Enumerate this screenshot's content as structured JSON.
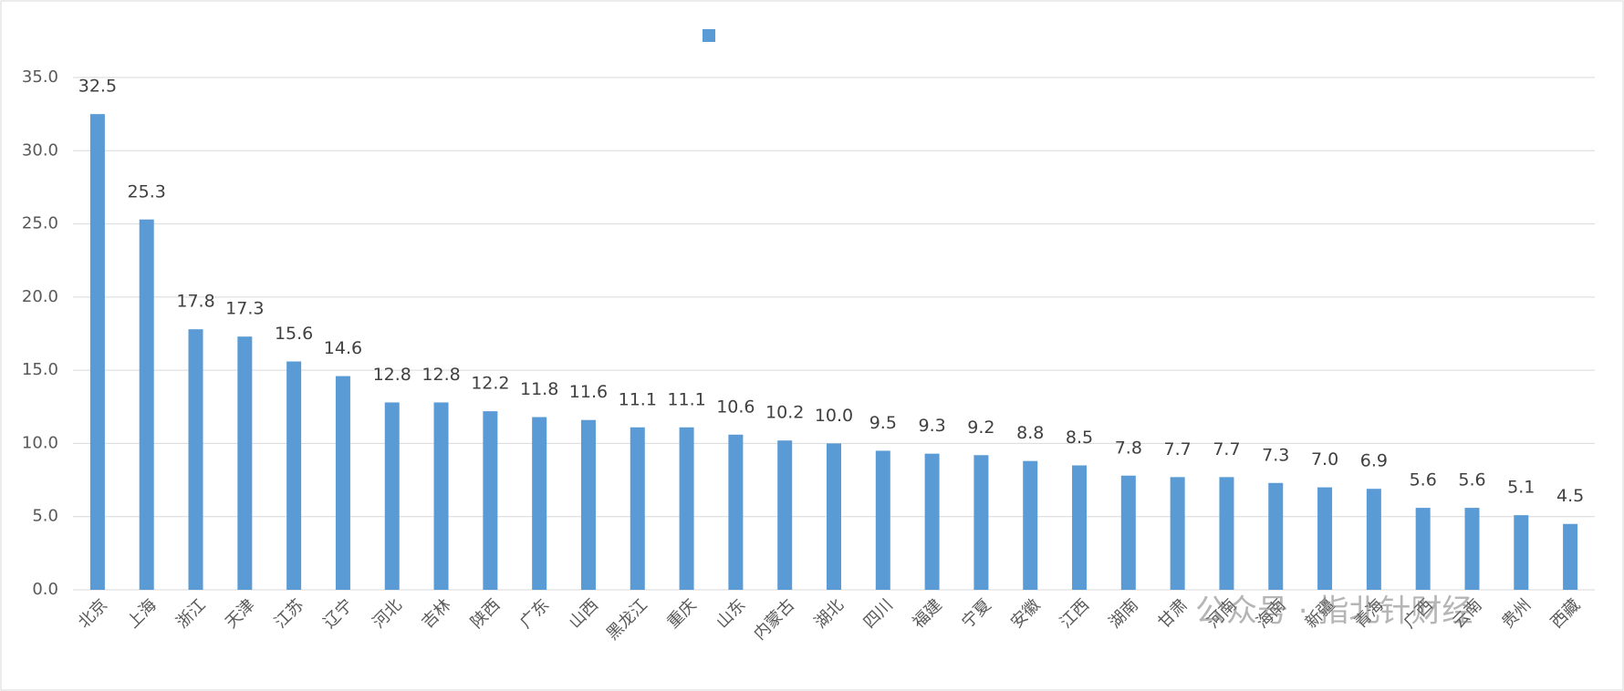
{
  "chart_data": {
    "type": "bar",
    "categories": [
      "北京",
      "上海",
      "浙江",
      "天津",
      "江苏",
      "辽宁",
      "河北",
      "吉林",
      "陕西",
      "广东",
      "山西",
      "黑龙江",
      "重庆",
      "山东",
      "内蒙古",
      "湖北",
      "四川",
      "福建",
      "宁夏",
      "安徽",
      "江西",
      "湖南",
      "甘肃",
      "河南",
      "海南",
      "新疆",
      "青海",
      "广西",
      "云南",
      "贵州",
      "西藏"
    ],
    "values": [
      32.5,
      25.3,
      17.8,
      17.3,
      15.6,
      14.6,
      12.8,
      12.8,
      12.2,
      11.8,
      11.6,
      11.1,
      11.1,
      10.6,
      10.2,
      10.0,
      9.5,
      9.3,
      9.2,
      8.8,
      8.5,
      7.8,
      7.7,
      7.7,
      7.3,
      7.0,
      6.9,
      5.6,
      5.6,
      5.1,
      4.5
    ],
    "value_labels": [
      "32.5",
      "25.3",
      "17.8",
      "17.3",
      "15.6",
      "14.6",
      "12.8",
      "12.8",
      "12.2",
      "11.8",
      "11.6",
      "11.1",
      "11.1",
      "10.6",
      "10.2",
      "10.0",
      "9.5",
      "9.3",
      "9.2",
      "8.8",
      "8.5",
      "7.8",
      "7.7",
      "7.7",
      "7.3",
      "7.0",
      "6.9",
      "5.6",
      "5.6",
      "5.1",
      "4.5"
    ],
    "color": "#5b9bd5",
    "ylim": [
      0,
      35
    ],
    "yticks": [
      {
        "value": 0,
        "label": "0.0"
      },
      {
        "value": 5,
        "label": "5.0"
      },
      {
        "value": 10,
        "label": "10.0"
      },
      {
        "value": 15,
        "label": "15.0"
      },
      {
        "value": 20,
        "label": "20.0"
      },
      {
        "value": 25,
        "label": "25.0"
      },
      {
        "value": 30,
        "label": "30.0"
      },
      {
        "value": 35,
        "label": "35.0"
      }
    ],
    "grid": true,
    "watermark": "公众号 · 指北针财经"
  }
}
